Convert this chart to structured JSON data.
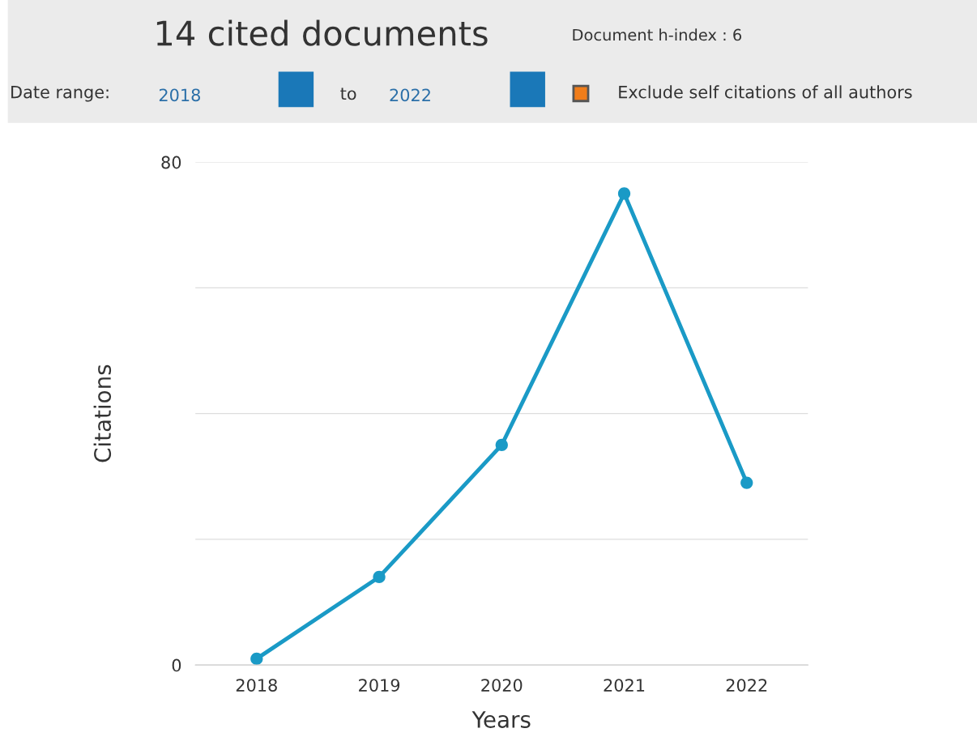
{
  "chart_data": {
    "type": "line",
    "title": "14 cited documents",
    "subtitle": "Document h-index : 6",
    "annotations": [
      "Date range:",
      "2018",
      "to",
      "2022",
      "Exclude self citations of all authors"
    ],
    "xlabel": "Years",
    "ylabel": "Citations",
    "categories": [
      "2018",
      "2019",
      "2020",
      "2021",
      "2022"
    ],
    "series": [
      {
        "color": "#1a9ac6",
        "values": [
          1,
          14,
          35,
          75,
          29
        ]
      }
    ],
    "ylim": [
      0,
      80
    ],
    "yticks": [
      0,
      {
        "value": 20,
        "label": null
      },
      {
        "value": 40,
        "label": null
      },
      {
        "value": 60,
        "label": null
      },
      80
    ],
    "grid": "y",
    "marker": "circle",
    "line_style": "solid",
    "legend": false
  }
}
